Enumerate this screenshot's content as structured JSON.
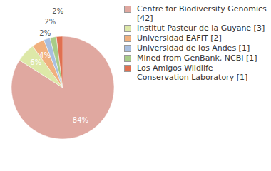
{
  "chart_data": {
    "type": "pie",
    "categories": [
      "Centre for Biodiversity Genomics [42]",
      "Institut Pasteur de la Guyane [3]",
      "Universidad EAFIT [2]",
      "Universidad de los Andes [1]",
      "Mined from GenBank, NCBI [1]",
      "Los Amigos Wildlife Conservation Laboratory [1]"
    ],
    "values": [
      84,
      6,
      4,
      2,
      2,
      2
    ],
    "value_labels": [
      "84%",
      "6%",
      "4%",
      "2%",
      "2%",
      "2%"
    ],
    "colors": [
      "#e0a8a0",
      "#dde8a8",
      "#f0b07e",
      "#a8bfe0",
      "#a8cc88",
      "#e07050"
    ],
    "data_labels": true,
    "legend": "right"
  }
}
